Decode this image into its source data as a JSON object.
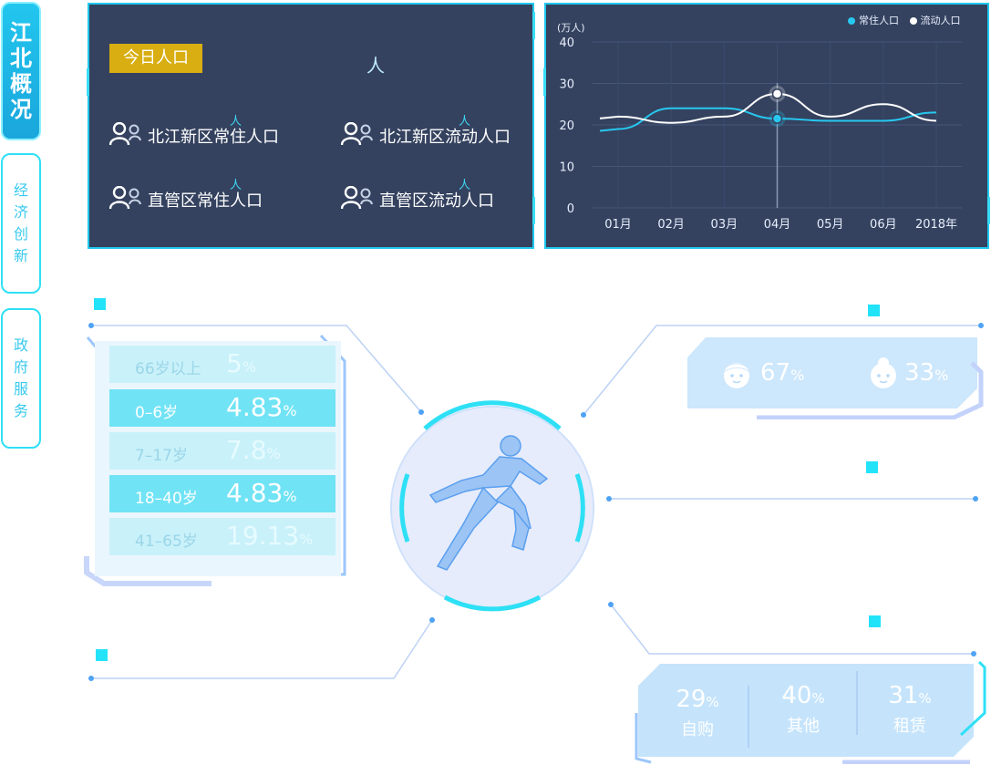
{
  "nav": [
    {
      "label": "江北概况",
      "active": true
    },
    {
      "label": "经济创新",
      "active": false
    },
    {
      "label": "政府服务",
      "active": false
    }
  ],
  "population": {
    "title": "今日人口",
    "total_unit": "人",
    "stats": [
      {
        "label": "北江新区常住人口",
        "unit": "人"
      },
      {
        "label": "北江新区流动人口",
        "unit": "人"
      },
      {
        "label": "直管区常住人口",
        "unit": "人"
      },
      {
        "label": "直管区流动人口",
        "unit": "人"
      }
    ]
  },
  "chart_data": {
    "type": "line",
    "ylabel": "(万人)",
    "ylim": [
      0,
      40
    ],
    "yticks": [
      "0",
      "10",
      "20",
      "30",
      "40"
    ],
    "categories": [
      "01月",
      "02月",
      "03月",
      "04月",
      "05月",
      "06月",
      "2018年"
    ],
    "series": [
      {
        "name": "常住人口",
        "color": "#27c8f0",
        "values": [
          19,
          24,
          24,
          21.5,
          21,
          21,
          23
        ]
      },
      {
        "name": "流动人口",
        "color": "#ffffff",
        "values": [
          22,
          20.5,
          22,
          27.5,
          22,
          25,
          21
        ]
      }
    ],
    "highlight_category": "04月",
    "grid": true,
    "legend_position": "top-right"
  },
  "age": {
    "items": [
      {
        "range": "66岁以上",
        "value": "5",
        "style": "light"
      },
      {
        "range": "0–6岁",
        "value": "4.83",
        "style": "dark"
      },
      {
        "range": "7–17岁",
        "value": "7.8",
        "style": "light"
      },
      {
        "range": "18–40岁",
        "value": "4.83",
        "style": "dark"
      },
      {
        "range": "41–65岁",
        "value": "19.13",
        "style": "light"
      }
    ],
    "pct_sign": "%"
  },
  "gender": {
    "male_pct": "67",
    "female_pct": "33",
    "pct_sign": "%"
  },
  "housing": {
    "items": [
      {
        "pct": "29",
        "label": "自购"
      },
      {
        "pct": "40",
        "label": "其他"
      },
      {
        "pct": "31",
        "label": "租赁"
      }
    ],
    "pct_sign": "%"
  },
  "icons": [
    "users-icon",
    "boy-face-icon",
    "girl-face-icon",
    "running-figure-icon"
  ]
}
